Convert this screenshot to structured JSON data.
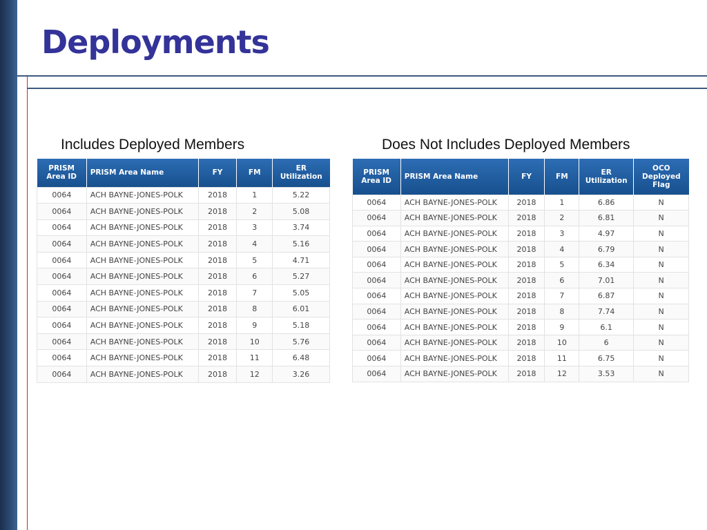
{
  "slide": {
    "title": "Deployments"
  },
  "left": {
    "caption": "Includes Deployed Members",
    "columns": [
      "PRISM\nArea ID",
      "PRISM Area Name",
      "FY",
      "FM",
      "ER\nUtilization"
    ],
    "rows": [
      [
        "0064",
        "ACH BAYNE-JONES-POLK",
        "2018",
        "1",
        "5.22"
      ],
      [
        "0064",
        "ACH BAYNE-JONES-POLK",
        "2018",
        "2",
        "5.08"
      ],
      [
        "0064",
        "ACH BAYNE-JONES-POLK",
        "2018",
        "3",
        "3.74"
      ],
      [
        "0064",
        "ACH BAYNE-JONES-POLK",
        "2018",
        "4",
        "5.16"
      ],
      [
        "0064",
        "ACH BAYNE-JONES-POLK",
        "2018",
        "5",
        "4.71"
      ],
      [
        "0064",
        "ACH BAYNE-JONES-POLK",
        "2018",
        "6",
        "5.27"
      ],
      [
        "0064",
        "ACH BAYNE-JONES-POLK",
        "2018",
        "7",
        "5.05"
      ],
      [
        "0064",
        "ACH BAYNE-JONES-POLK",
        "2018",
        "8",
        "6.01"
      ],
      [
        "0064",
        "ACH BAYNE-JONES-POLK",
        "2018",
        "9",
        "5.18"
      ],
      [
        "0064",
        "ACH BAYNE-JONES-POLK",
        "2018",
        "10",
        "5.76"
      ],
      [
        "0064",
        "ACH BAYNE-JONES-POLK",
        "2018",
        "11",
        "6.48"
      ],
      [
        "0064",
        "ACH BAYNE-JONES-POLK",
        "2018",
        "12",
        "3.26"
      ]
    ]
  },
  "right": {
    "caption": "Does Not Includes Deployed Members",
    "columns": [
      "PRISM\nArea ID",
      "PRISM Area Name",
      "FY",
      "FM",
      "ER\nUtilization",
      "OCO\nDeployed\nFlag"
    ],
    "rows": [
      [
        "0064",
        "ACH BAYNE-JONES-POLK",
        "2018",
        "1",
        "6.86",
        "N"
      ],
      [
        "0064",
        "ACH BAYNE-JONES-POLK",
        "2018",
        "2",
        "6.81",
        "N"
      ],
      [
        "0064",
        "ACH BAYNE-JONES-POLK",
        "2018",
        "3",
        "4.97",
        "N"
      ],
      [
        "0064",
        "ACH BAYNE-JONES-POLK",
        "2018",
        "4",
        "6.79",
        "N"
      ],
      [
        "0064",
        "ACH BAYNE-JONES-POLK",
        "2018",
        "5",
        "6.34",
        "N"
      ],
      [
        "0064",
        "ACH BAYNE-JONES-POLK",
        "2018",
        "6",
        "7.01",
        "N"
      ],
      [
        "0064",
        "ACH BAYNE-JONES-POLK",
        "2018",
        "7",
        "6.87",
        "N"
      ],
      [
        "0064",
        "ACH BAYNE-JONES-POLK",
        "2018",
        "8",
        "7.74",
        "N"
      ],
      [
        "0064",
        "ACH BAYNE-JONES-POLK",
        "2018",
        "9",
        "6.1",
        "N"
      ],
      [
        "0064",
        "ACH BAYNE-JONES-POLK",
        "2018",
        "10",
        "6",
        "N"
      ],
      [
        "0064",
        "ACH BAYNE-JONES-POLK",
        "2018",
        "11",
        "6.75",
        "N"
      ],
      [
        "0064",
        "ACH BAYNE-JONES-POLK",
        "2018",
        "12",
        "3.53",
        "N"
      ]
    ]
  }
}
